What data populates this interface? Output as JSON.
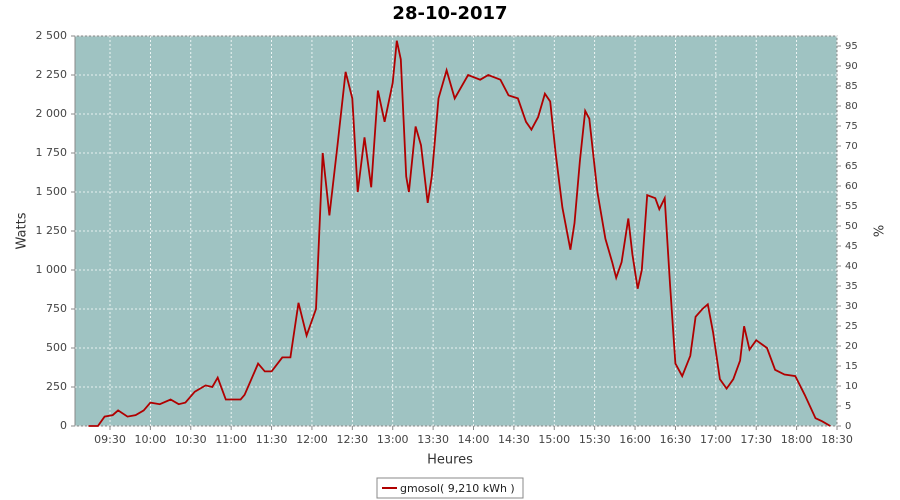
{
  "chart_data": {
    "type": "line",
    "title": "28-10-2017",
    "x_label": "Heures",
    "y_label": "Watts",
    "y2_label": "%",
    "x": [
      "09:14",
      "09:21",
      "09:26",
      "09:32",
      "09:36",
      "09:43",
      "09:49",
      "09:55",
      "10:00",
      "10:07",
      "10:15",
      "10:21",
      "10:26",
      "10:33",
      "10:41",
      "10:46",
      "10:50",
      "10:56",
      "11:07",
      "11:10",
      "11:20",
      "11:25",
      "11:30",
      "11:38",
      "11:44",
      "11:50",
      "11:56",
      "12:03",
      "12:08",
      "12:13",
      "12:19",
      "12:25",
      "12:30",
      "12:34",
      "12:39",
      "12:44",
      "12:49",
      "12:54",
      "13:00",
      "13:03",
      "13:06",
      "13:10",
      "13:12",
      "13:17",
      "13:21",
      "13:26",
      "13:29",
      "13:34",
      "13:40",
      "13:46",
      "13:56",
      "14:05",
      "14:11",
      "14:20",
      "14:26",
      "14:33",
      "14:39",
      "14:43",
      "14:48",
      "14:53",
      "14:57",
      "15:01",
      "15:06",
      "15:12",
      "15:15",
      "15:19",
      "15:23",
      "15:26",
      "15:32",
      "15:38",
      "15:43",
      "15:46",
      "15:50",
      "15:55",
      "15:58",
      "16:02",
      "16:05",
      "16:09",
      "16:15",
      "16:18",
      "16:22",
      "16:26",
      "16:30",
      "16:35",
      "16:41",
      "16:45",
      "16:50",
      "16:54",
      "16:58",
      "17:03",
      "17:08",
      "17:13",
      "17:18",
      "17:21",
      "17:25",
      "17:30",
      "17:38",
      "17:44",
      "17:51",
      "17:59",
      "18:06",
      "18:14",
      "18:19",
      "18:25"
    ],
    "series": [
      {
        "name": "gmosol( 9,210 kWh )",
        "color": "#b00000",
        "values": [
          0,
          0,
          60,
          70,
          100,
          60,
          70,
          100,
          150,
          140,
          170,
          140,
          150,
          220,
          260,
          250,
          310,
          170,
          170,
          200,
          400,
          350,
          350,
          440,
          440,
          790,
          580,
          750,
          1750,
          1350,
          1800,
          2270,
          2100,
          1500,
          1850,
          1530,
          2150,
          1950,
          2200,
          2470,
          2350,
          1600,
          1500,
          1920,
          1800,
          1430,
          1600,
          2100,
          2280,
          2100,
          2250,
          2220,
          2250,
          2220,
          2120,
          2100,
          1950,
          1900,
          1980,
          2130,
          2080,
          1750,
          1400,
          1130,
          1300,
          1700,
          2020,
          1970,
          1500,
          1200,
          1050,
          950,
          1050,
          1330,
          1100,
          880,
          1000,
          1480,
          1460,
          1390,
          1460,
          900,
          400,
          320,
          450,
          700,
          750,
          780,
          600,
          300,
          240,
          300,
          420,
          640,
          490,
          550,
          500,
          360,
          330,
          320,
          200,
          50,
          30,
          0
        ]
      }
    ],
    "xlim": [
      "09:04",
      "18:30"
    ],
    "xticks": [
      "09:30",
      "10:00",
      "10:30",
      "11:00",
      "11:30",
      "12:00",
      "12:30",
      "13:00",
      "13:30",
      "14:00",
      "14:30",
      "15:00",
      "15:30",
      "16:00",
      "16:30",
      "17:00",
      "17:30",
      "18:00",
      "18:30"
    ],
    "ylim": [
      0,
      2500
    ],
    "yticks": [
      0,
      250,
      500,
      750,
      {
        "value": 1000,
        "label": "1 000"
      },
      {
        "value": 1250,
        "label": "1 250"
      },
      {
        "value": 1500,
        "label": "1 500"
      },
      {
        "value": 1750,
        "label": "1 750"
      },
      {
        "value": 2000,
        "label": "2 000"
      },
      {
        "value": 2250,
        "label": "2 250"
      },
      {
        "value": 2500,
        "label": "2 500"
      }
    ],
    "y2lim": [
      0,
      97.5
    ],
    "y2ticks": [
      0,
      5,
      10,
      15,
      20,
      25,
      30,
      35,
      40,
      45,
      50,
      55,
      60,
      65,
      70,
      75,
      80,
      85,
      90,
      95
    ],
    "grid": true,
    "background": "#9fc3c2",
    "legend": "bottom"
  }
}
